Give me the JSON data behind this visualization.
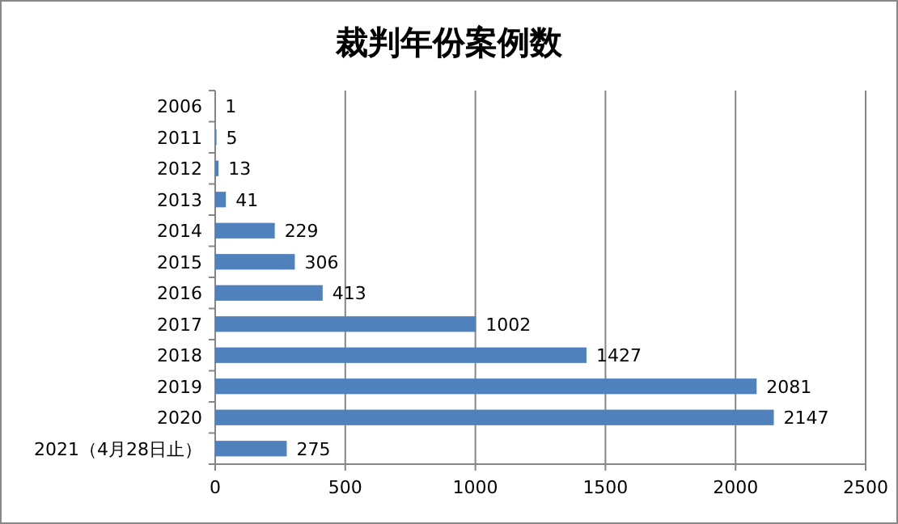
{
  "chart_data": {
    "type": "bar",
    "orientation": "horizontal",
    "title": "裁判年份案例数",
    "categories": [
      "2006",
      "2011",
      "2012",
      "2013",
      "2014",
      "2015",
      "2016",
      "2017",
      "2018",
      "2019",
      "2020",
      "2021（4月28日止）"
    ],
    "values": [
      1,
      5,
      13,
      41,
      229,
      306,
      413,
      1002,
      1427,
      2081,
      2147,
      275
    ],
    "color": "#4f81bd",
    "xlim": [
      0,
      2500
    ],
    "xticks": [
      0,
      500,
      1000,
      1500,
      2000,
      2500
    ],
    "grid": "x",
    "data_labels": true
  }
}
